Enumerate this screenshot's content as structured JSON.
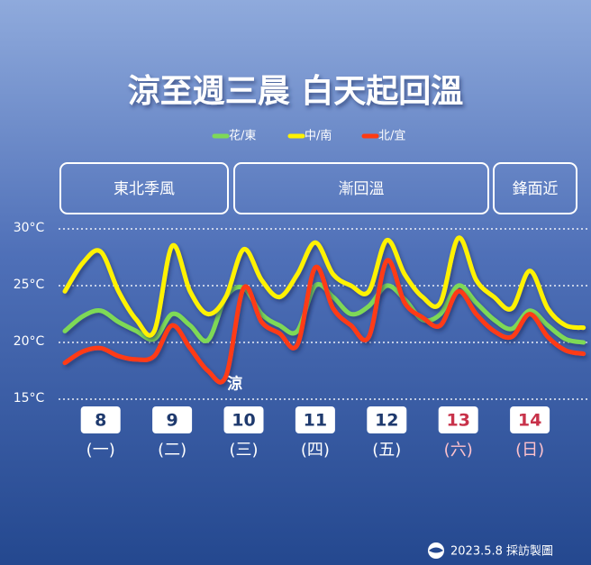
{
  "title": "涼至週三晨 白天起回溫",
  "phases": [
    {
      "label": "東北季風"
    },
    {
      "label": "漸回溫"
    },
    {
      "label": "鋒面近"
    }
  ],
  "footer": "2023.5.8 採訪製圖",
  "chart_data": {
    "type": "line",
    "categories": [
      null,
      null,
      "8",
      null,
      null,
      null,
      "9",
      null,
      null,
      null,
      "10",
      null,
      null,
      null,
      "11",
      null,
      null,
      null,
      "12",
      null,
      null,
      null,
      "13",
      null,
      null,
      null,
      "14",
      null,
      null,
      null
    ],
    "weekdays": [
      null,
      null,
      "(一)",
      null,
      null,
      null,
      "(二)",
      null,
      null,
      null,
      "(三)",
      null,
      null,
      null,
      "(四)",
      null,
      null,
      null,
      "(五)",
      null,
      null,
      null,
      "(六)",
      null,
      null,
      null,
      "(日)",
      null,
      null,
      null
    ],
    "category_colors": [
      null,
      null,
      "#1f3a6e",
      null,
      null,
      null,
      "#1f3a6e",
      null,
      null,
      null,
      "#1f3a6e",
      null,
      null,
      null,
      "#1f3a6e",
      null,
      null,
      null,
      "#1f3a6e",
      null,
      null,
      null,
      "#c8324a",
      null,
      null,
      null,
      "#c8324a",
      null,
      null,
      null
    ],
    "series": [
      {
        "name": "花/東",
        "color": "#7ed957",
        "values": [
          21,
          22.3,
          22.8,
          21.8,
          21,
          20.3,
          22.5,
          21.5,
          20.2,
          24,
          24.8,
          22.5,
          21.5,
          21,
          25,
          24,
          22.5,
          23.2,
          25,
          23.8,
          22,
          22.5,
          25,
          23.5,
          22,
          21.2,
          22.8,
          21.5,
          20.3,
          20
        ]
      },
      {
        "name": "中/南",
        "color": "#fff200",
        "values": [
          24.5,
          27,
          28,
          24.5,
          22,
          21,
          28.5,
          24.5,
          22.5,
          24,
          28.2,
          25.5,
          24,
          26,
          28.8,
          26,
          25,
          24.5,
          29,
          26,
          24,
          23.5,
          29.2,
          25.5,
          24,
          23,
          26.3,
          23,
          21.5,
          21.3
        ]
      },
      {
        "name": "北/宜",
        "color": "#ff3b12",
        "values": [
          18.2,
          19.2,
          19.5,
          18.8,
          18.5,
          18.8,
          21.5,
          19.5,
          17.5,
          17,
          24.8,
          21.8,
          20.8,
          19.8,
          26.6,
          23,
          21.5,
          20.5,
          27.2,
          23.5,
          22.2,
          21.5,
          24.5,
          22.5,
          21,
          20.5,
          22.5,
          20.5,
          19.3,
          19
        ]
      }
    ],
    "annotations": [
      {
        "text": "涼",
        "x": 9,
        "y": 16.3
      }
    ],
    "ylim": [
      14,
      31
    ],
    "yticks": [
      {
        "value": 15,
        "label": "15°C"
      },
      {
        "value": 20,
        "label": "20°C"
      },
      {
        "value": 25,
        "label": "25°C"
      },
      {
        "value": 30,
        "label": "30°C"
      }
    ],
    "grid": true
  }
}
